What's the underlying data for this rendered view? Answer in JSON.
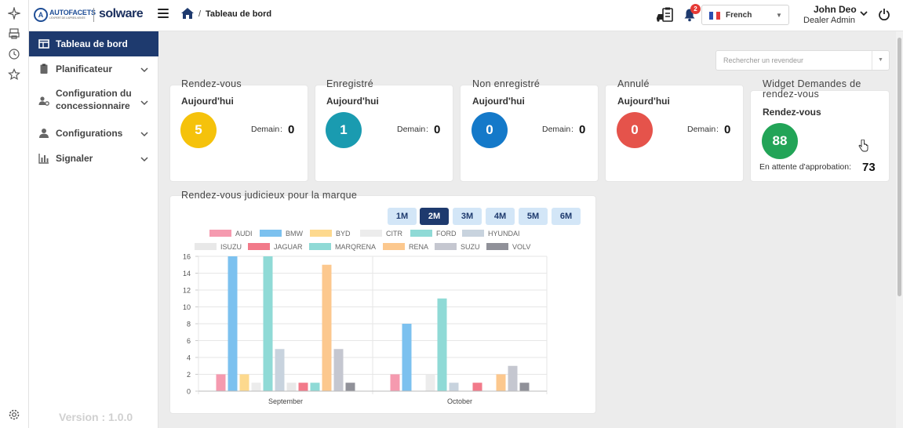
{
  "header": {
    "logo_brand": "AUTOFACETS",
    "logo_tagline": "L'EXPERT DE L'APRES-VENTE",
    "logo_product": "solware",
    "breadcrumb_sep": "/",
    "breadcrumb_page": "Tableau de bord",
    "notification_count": "2",
    "language": "French",
    "user_name": "John Deo",
    "user_role": "Dealer Admin"
  },
  "sidebar": {
    "items": [
      {
        "label": "Tableau de bord",
        "icon": "dashboard-icon",
        "active": true
      },
      {
        "label": "Planificateur",
        "icon": "clipboard-icon"
      },
      {
        "label": "Configuration du concessionnaire",
        "icon": "users-cog-icon"
      },
      {
        "label": "Configurations",
        "icon": "user-gear-icon"
      },
      {
        "label": "Signaler",
        "icon": "bar-chart-icon"
      }
    ],
    "version": "Version : 1.0.0"
  },
  "search": {
    "placeholder": "Rechercher un revendeur"
  },
  "cards": [
    {
      "title": "Rendez-vous",
      "subtitle": "Aujourd'hui",
      "today": "5",
      "color": "#f5c20b",
      "demain_label": "Demain",
      "demain_value": "0"
    },
    {
      "title": "Enregistré",
      "subtitle": "Aujourd'hui",
      "today": "1",
      "color": "#1a9bb0",
      "demain_label": "Demain",
      "demain_value": "0"
    },
    {
      "title": "Non enregistré",
      "subtitle": "Aujourd'hui",
      "today": "0",
      "color": "#1479c9",
      "demain_label": "Demain",
      "demain_value": "0"
    },
    {
      "title": "Annulé",
      "subtitle": "Aujourd'hui",
      "today": "0",
      "color": "#e5534b",
      "demain_label": "Demain",
      "demain_value": "0"
    }
  ],
  "widget": {
    "title_line1": "Widget Demandes de",
    "title_line2": "rendez-vous",
    "subtitle": "Rendez-vous",
    "value": "88",
    "color": "#22a457",
    "pending_label": "En attente d'approbation:",
    "pending_value": "73"
  },
  "chart_section": {
    "title": "Rendez-vous judicieux pour la marque",
    "ranges": [
      "1M",
      "2M",
      "3M",
      "4M",
      "5M",
      "6M"
    ],
    "active_range": "2M"
  },
  "chart_data": {
    "type": "bar",
    "categories": [
      "September",
      "October"
    ],
    "ylim": [
      0,
      16
    ],
    "yticks": [
      0,
      2,
      4,
      6,
      8,
      10,
      12,
      14,
      16
    ],
    "grid": true,
    "legend_position": "top",
    "series": [
      {
        "name": "AUDI",
        "color": "#f59aaf",
        "values": [
          2,
          2
        ]
      },
      {
        "name": "BMW",
        "color": "#7cc1ef",
        "values": [
          16,
          8
        ]
      },
      {
        "name": "BYD",
        "color": "#fdd98e",
        "values": [
          2,
          0
        ]
      },
      {
        "name": "CITR",
        "color": "#ececec",
        "values": [
          1,
          2
        ]
      },
      {
        "name": "FORD",
        "color": "#8fdad6",
        "values": [
          16,
          11
        ]
      },
      {
        "name": "HYUNDAI",
        "color": "#c8d3de",
        "values": [
          5,
          1
        ]
      },
      {
        "name": "ISUZU",
        "color": "#e8e8e8",
        "values": [
          1,
          0
        ]
      },
      {
        "name": "JAGUAR",
        "color": "#f27a8a",
        "values": [
          1,
          1
        ]
      },
      {
        "name": "MARQRENA",
        "color": "#8fdad6",
        "values": [
          1,
          0
        ]
      },
      {
        "name": "RENA",
        "color": "#fcc88e",
        "values": [
          15,
          2
        ]
      },
      {
        "name": "SUZU",
        "color": "#c5c7d0",
        "values": [
          5,
          3
        ]
      },
      {
        "name": "VOLV",
        "color": "#909199",
        "values": [
          1,
          1
        ]
      }
    ]
  }
}
